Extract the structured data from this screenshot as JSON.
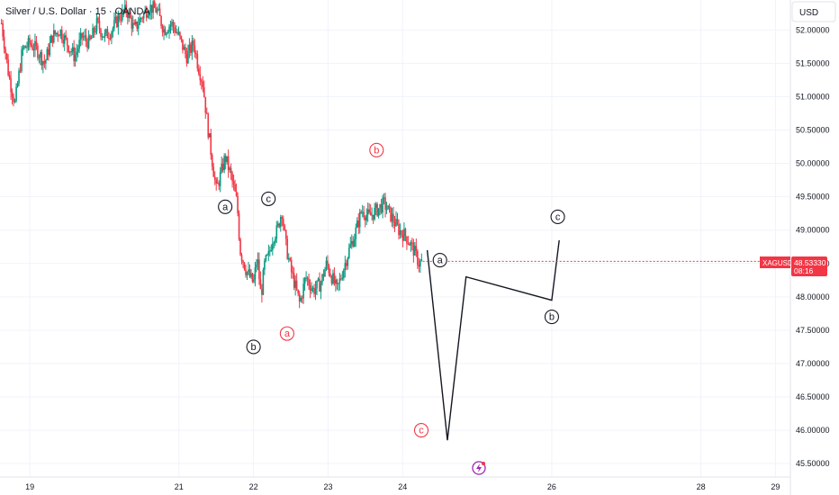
{
  "header": {
    "title": "Silver / U.S. Dollar · 15 · OANDA",
    "currency_button": "USD"
  },
  "price_tag": {
    "symbol": "XAGUSD",
    "price": "48.53330",
    "countdown": "08:16",
    "color": "#f23645"
  },
  "colors": {
    "up": "#089981",
    "down": "#f23645",
    "wave_black": "#131722",
    "wave_red": "#f23645",
    "grid": "#f0f3fa"
  },
  "chart_data": {
    "type": "candlestick",
    "title": "Silver / U.S. Dollar · 15 · OANDA",
    "ylim": [
      45.3,
      52.45
    ],
    "xlim": [
      18.6,
      29.2
    ],
    "y_ticks": [
      "52.00000",
      "51.50000",
      "51.00000",
      "50.50000",
      "50.00000",
      "49.50000",
      "49.00000",
      "48.50000",
      "48.00000",
      "47.50000",
      "47.00000",
      "46.50000",
      "46.00000",
      "45.50000"
    ],
    "x_ticks": [
      {
        "label": "19",
        "x": 19
      },
      {
        "label": "21",
        "x": 21
      },
      {
        "label": "22",
        "x": 22
      },
      {
        "label": "23",
        "x": 23
      },
      {
        "label": "24",
        "x": 24
      },
      {
        "label": "26",
        "x": 26
      },
      {
        "label": "28",
        "x": 28
      },
      {
        "label": "29",
        "x": 29
      }
    ],
    "price_path": [
      [
        18.62,
        52.1
      ],
      [
        18.72,
        51.3
      ],
      [
        18.8,
        50.9
      ],
      [
        18.9,
        51.7
      ],
      [
        19.0,
        51.8
      ],
      [
        19.1,
        51.7
      ],
      [
        19.2,
        51.5
      ],
      [
        19.3,
        51.9
      ],
      [
        19.4,
        52.0
      ],
      [
        19.5,
        51.8
      ],
      [
        19.6,
        51.6
      ],
      [
        19.7,
        51.9
      ],
      [
        19.8,
        51.8
      ],
      [
        19.9,
        52.1
      ],
      [
        20.0,
        51.9
      ],
      [
        20.1,
        52.0
      ],
      [
        20.2,
        52.2
      ],
      [
        20.3,
        52.3
      ],
      [
        20.4,
        52.0
      ],
      [
        20.5,
        52.2
      ],
      [
        20.6,
        52.35
      ],
      [
        20.7,
        52.3
      ],
      [
        20.8,
        52.0
      ],
      [
        20.9,
        52.1
      ],
      [
        21.0,
        51.9
      ],
      [
        21.1,
        51.6
      ],
      [
        21.2,
        51.8
      ],
      [
        21.25,
        51.5
      ],
      [
        21.32,
        51.2
      ],
      [
        21.38,
        50.6
      ],
      [
        21.45,
        50.0
      ],
      [
        21.5,
        49.6
      ],
      [
        21.55,
        49.8
      ],
      [
        21.62,
        50.1
      ],
      [
        21.7,
        49.8
      ],
      [
        21.78,
        49.4
      ],
      [
        21.82,
        48.7
      ],
      [
        21.9,
        48.4
      ],
      [
        22.0,
        48.2
      ],
      [
        22.05,
        48.6
      ],
      [
        22.1,
        48.0
      ],
      [
        22.15,
        48.5
      ],
      [
        22.2,
        48.6
      ],
      [
        22.26,
        48.9
      ],
      [
        22.32,
        49.0
      ],
      [
        22.38,
        49.3
      ],
      [
        22.43,
        48.8
      ],
      [
        22.5,
        48.4
      ],
      [
        22.55,
        48.2
      ],
      [
        22.62,
        47.9
      ],
      [
        22.7,
        48.3
      ],
      [
        22.8,
        48.1
      ],
      [
        22.9,
        48.2
      ],
      [
        22.98,
        48.5
      ],
      [
        23.05,
        48.3
      ],
      [
        23.12,
        48.1
      ],
      [
        23.2,
        48.4
      ],
      [
        23.28,
        48.7
      ],
      [
        23.35,
        48.9
      ],
      [
        23.45,
        49.3
      ],
      [
        23.55,
        49.2
      ],
      [
        23.65,
        49.3
      ],
      [
        23.75,
        49.4
      ],
      [
        23.85,
        49.2
      ],
      [
        23.95,
        49.0
      ],
      [
        24.05,
        48.9
      ],
      [
        24.15,
        48.7
      ],
      [
        24.22,
        48.5
      ],
      [
        24.27,
        48.54
      ]
    ],
    "projection": [
      [
        24.33,
        48.7
      ],
      [
        24.6,
        45.85
      ],
      [
        24.85,
        48.3
      ],
      [
        26.0,
        47.95
      ],
      [
        26.1,
        48.85
      ]
    ],
    "wave_labels": [
      {
        "text": "a",
        "x": 21.62,
        "y": 49.35,
        "color": "#131722"
      },
      {
        "text": "c",
        "x": 22.2,
        "y": 49.47,
        "color": "#131722"
      },
      {
        "text": "b",
        "x": 22.0,
        "y": 47.25,
        "color": "#131722"
      },
      {
        "text": "a",
        "x": 22.45,
        "y": 47.45,
        "color": "#f23645"
      },
      {
        "text": "b",
        "x": 23.65,
        "y": 50.2,
        "color": "#f23645"
      },
      {
        "text": "c",
        "x": 24.25,
        "y": 46.0,
        "color": "#f23645"
      },
      {
        "text": "a",
        "x": 24.5,
        "y": 48.55,
        "color": "#131722"
      },
      {
        "text": "b",
        "x": 26.0,
        "y": 47.7,
        "color": "#131722"
      },
      {
        "text": "c",
        "x": 26.08,
        "y": 49.2,
        "color": "#131722"
      }
    ]
  }
}
